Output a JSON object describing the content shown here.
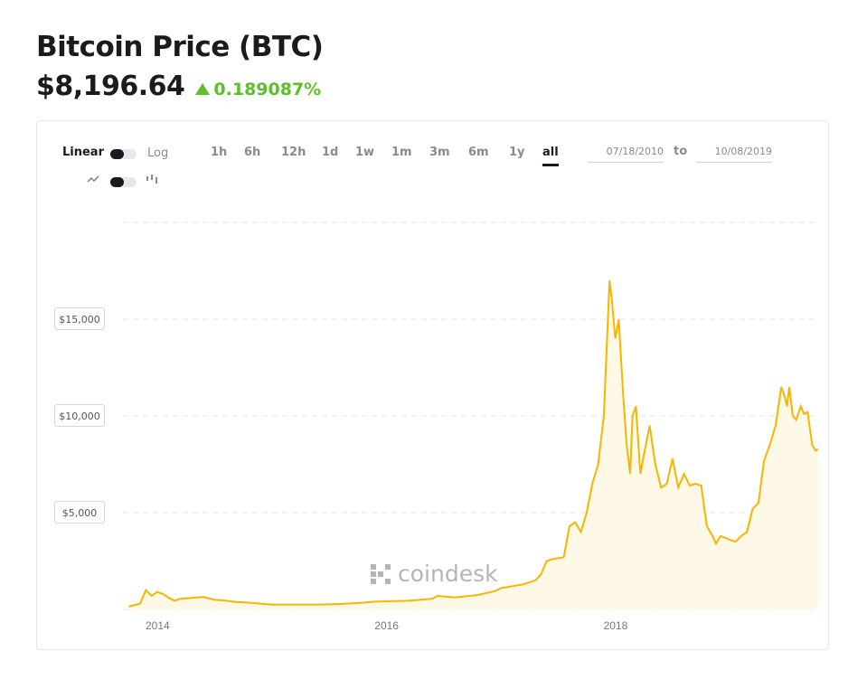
{
  "header": {
    "title": "Bitcoin Price (BTC)",
    "price": "$8,196.64",
    "change": "0.189087%"
  },
  "controls": {
    "scale_linear": "Linear",
    "scale_log": "Log",
    "ranges": [
      "1h",
      "6h",
      "12h",
      "1d",
      "1w",
      "1m",
      "3m",
      "6m",
      "1y",
      "all"
    ],
    "active_range": "all",
    "date_from": "07/18/2010",
    "date_to_label": "to",
    "date_to": "10/08/2019"
  },
  "watermark": "coindesk",
  "colors": {
    "line": "#f7b500",
    "fill": "#fef8e6",
    "accent": "#5dbf2b"
  },
  "chart_data": {
    "type": "area",
    "ylabel_ticks": [
      "$5,000",
      "$10,000",
      "$15,000"
    ],
    "y_ticks": [
      5000,
      10000,
      15000
    ],
    "x_ticks": [
      "2014",
      "2016",
      "2018"
    ],
    "x_tick_values": [
      2014.0,
      2016.0,
      2018.0
    ],
    "ylim": [
      0,
      20000
    ],
    "grid": true,
    "series": [
      {
        "x": [
          2013.75,
          2013.85,
          2013.9,
          2013.95,
          2014.0,
          2014.05,
          2014.1,
          2014.15,
          2014.2,
          2014.3,
          2014.4,
          2014.5,
          2014.6,
          2014.7,
          2014.8,
          2014.9,
          2015.0,
          2015.1,
          2015.2,
          2015.4,
          2015.6,
          2015.8,
          2015.9,
          2016.0,
          2016.2,
          2016.4,
          2016.45,
          2016.6,
          2016.8,
          2016.95,
          2017.0,
          2017.1,
          2017.2,
          2017.3,
          2017.35,
          2017.4,
          2017.45,
          2017.55,
          2017.6,
          2017.65,
          2017.7,
          2017.75,
          2017.8,
          2017.85,
          2017.9,
          2017.95,
          2017.97,
          2018.0,
          2018.03,
          2018.05,
          2018.07,
          2018.1,
          2018.13,
          2018.15,
          2018.18,
          2018.22,
          2018.25,
          2018.3,
          2018.35,
          2018.4,
          2018.45,
          2018.5,
          2018.55,
          2018.6,
          2018.65,
          2018.7,
          2018.75,
          2018.8,
          2018.85,
          2018.88,
          2018.92,
          2019.0,
          2019.05,
          2019.1,
          2019.15,
          2019.2,
          2019.25,
          2019.3,
          2019.35,
          2019.4,
          2019.45,
          2019.48,
          2019.5,
          2019.52,
          2019.55,
          2019.58,
          2019.62,
          2019.65,
          2019.68,
          2019.72,
          2019.75,
          2019.77
        ],
        "y": [
          150,
          300,
          1000,
          700,
          900,
          800,
          600,
          450,
          550,
          600,
          650,
          500,
          450,
          380,
          350,
          300,
          250,
          250,
          250,
          250,
          280,
          350,
          400,
          420,
          450,
          550,
          700,
          620,
          750,
          950,
          1100,
          1200,
          1300,
          1500,
          1800,
          2500,
          2600,
          2700,
          4300,
          4500,
          4000,
          5000,
          6500,
          7500,
          10000,
          17000,
          16000,
          14000,
          15000,
          13000,
          11000,
          8500,
          7000,
          10000,
          10500,
          7000,
          8000,
          9500,
          7500,
          6300,
          6500,
          7800,
          6300,
          7000,
          6400,
          6500,
          6400,
          4300,
          3800,
          3400,
          3800,
          3600,
          3500,
          3800,
          4000,
          5200,
          5500,
          7700,
          8500,
          9500,
          11500,
          11000,
          10500,
          11500,
          10000,
          9800,
          10500,
          10100,
          10200,
          8500,
          8200,
          8300
        ]
      }
    ]
  }
}
